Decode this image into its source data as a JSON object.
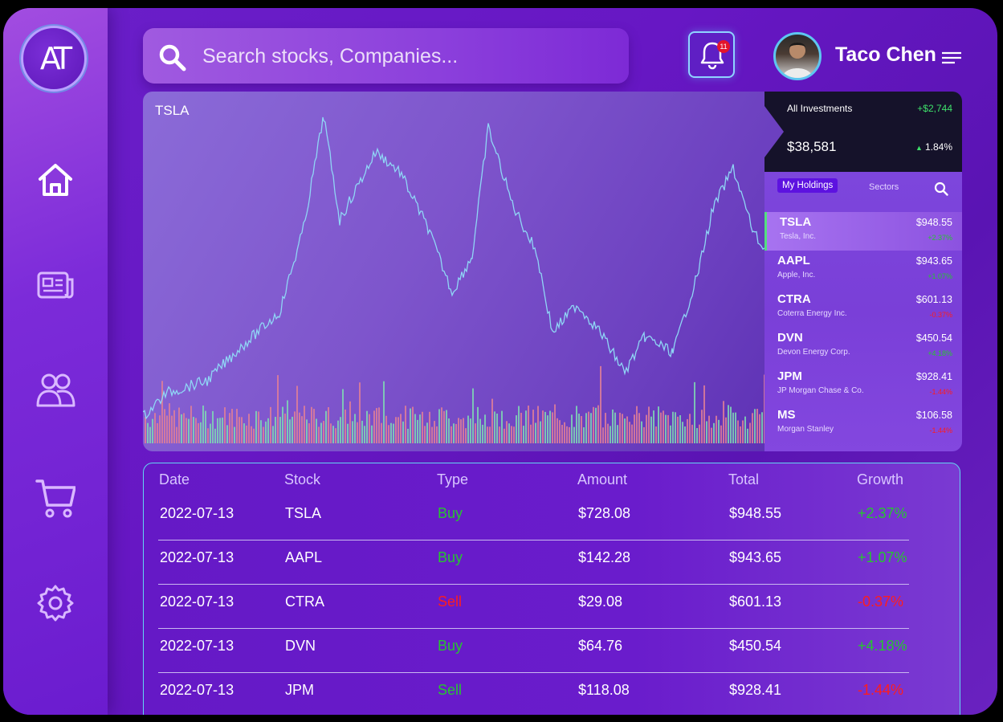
{
  "app": {
    "logo_text": "AT"
  },
  "search": {
    "placeholder": "Search stocks, Companies..."
  },
  "notifications": {
    "count": "11"
  },
  "user": {
    "name": "Taco Chen"
  },
  "nav": [
    "home-icon",
    "news-icon",
    "users-icon",
    "cart-icon",
    "settings-icon"
  ],
  "chart": {
    "symbol": "TSLA"
  },
  "investments": {
    "label": "All Investments",
    "gain": "+$2,744",
    "value": "$38,581",
    "change_pct": "1.84%"
  },
  "holdings_tabs": {
    "active": "My Holdings",
    "other": "Sectors"
  },
  "holdings": [
    {
      "symbol": "TSLA",
      "name": "Tesla, Inc.",
      "price": "$948.55",
      "change": "+2.37%",
      "trend": "up"
    },
    {
      "symbol": "AAPL",
      "name": "Apple, Inc.",
      "price": "$943.65",
      "change": "+1.07%",
      "trend": "up"
    },
    {
      "symbol": "CTRA",
      "name": "Coterra Energy Inc.",
      "price": "$601.13",
      "change": "-0.37%",
      "trend": "down"
    },
    {
      "symbol": "DVN",
      "name": "Devon Energy Corp.",
      "price": "$450.54",
      "change": "+4.18%",
      "trend": "up"
    },
    {
      "symbol": "JPM",
      "name": "JP Morgan Chase & Co.",
      "price": "$928.41",
      "change": "-1.44%",
      "trend": "down"
    },
    {
      "symbol": "MS",
      "name": "Morgan Stanley",
      "price": "$106.58",
      "change": "-1.44%",
      "trend": "down"
    }
  ],
  "table": {
    "headers": [
      "Date",
      "Stock",
      "Type",
      "Amount",
      "Total",
      "Growth"
    ],
    "rows": [
      {
        "date": "2022-07-13",
        "stock": "TSLA",
        "type": "Buy",
        "amount": "$728.08",
        "total": "$948.55",
        "growth": "+2.37%"
      },
      {
        "date": "2022-07-13",
        "stock": "AAPL",
        "type": "Buy",
        "amount": "$142.28",
        "total": "$943.65",
        "growth": "+1.07%"
      },
      {
        "date": "2022-07-13",
        "stock": "CTRA",
        "type": "Sell",
        "amount": "$29.08",
        "total": "$601.13",
        "growth": "-0.37%"
      },
      {
        "date": "2022-07-13",
        "stock": "DVN",
        "type": "Buy",
        "amount": "$64.76",
        "total": "$450.54",
        "growth": "+4.18%"
      },
      {
        "date": "2022-07-13",
        "stock": "JPM",
        "type": "Sell",
        "amount": "$118.08",
        "total": "$928.41",
        "growth": "-1.44%"
      }
    ]
  },
  "colors": {
    "up": "#27c531",
    "down": "#ff1d1d",
    "accent": "#5d12e0",
    "line": "#8fd6f5"
  }
}
